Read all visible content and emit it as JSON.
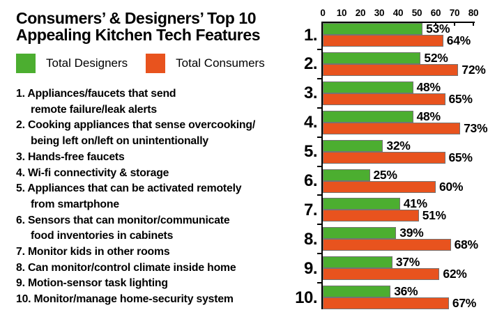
{
  "title": "Consumers’ & Designers’ Top 10\nAppealing Kitchen Tech Features",
  "legend": [
    {
      "label": "Total Designers",
      "color": "#4cae30"
    },
    {
      "label": "Total Consumers",
      "color": "#e8531e"
    }
  ],
  "features": [
    "1. Appliances/faucets that send\nremote failure/leak alerts",
    "2. Cooking appliances that sense overcooking/\nbeing left on/left on unintentionally",
    "3. Hands-free faucets",
    "4. Wi-fi connectivity & storage",
    "5. Appliances that can be activated remotely\nfrom smartphone",
    "6. Sensors that can monitor/communicate\nfood inventories in cabinets",
    "7. Monitor kids in other rooms",
    "8. Can monitor/control climate inside home",
    "9. Motion-sensor task lighting",
    "10. Monitor/manage home-security system"
  ],
  "chart_data": {
    "type": "bar",
    "orientation": "horizontal",
    "title": "Consumers’ & Designers’ Top 10 Appealing Kitchen Tech Features",
    "axis_position": "top",
    "xlim": [
      0,
      80
    ],
    "x_ticks": [
      0,
      10,
      20,
      30,
      40,
      50,
      60,
      70,
      80
    ],
    "value_suffix": "%",
    "row_labels": [
      "1.",
      "2.",
      "3.",
      "4.",
      "5.",
      "6.",
      "7.",
      "8.",
      "9.",
      "10."
    ],
    "categories": [
      "Appliances/faucets that send remote failure/leak alerts",
      "Cooking appliances that sense overcooking/being left on/left on unintentionally",
      "Hands-free faucets",
      "Wi-fi connectivity & storage",
      "Appliances that can be activated remotely from smartphone",
      "Sensors that can monitor/communicate food inventories in cabinets",
      "Monitor kids in other rooms",
      "Can monitor/control climate inside home",
      "Motion-sensor task lighting",
      "Monitor/manage home-security system"
    ],
    "series": [
      {
        "name": "Total Designers",
        "color": "#4cae30",
        "values": [
          53,
          52,
          48,
          48,
          32,
          25,
          41,
          39,
          37,
          36
        ]
      },
      {
        "name": "Total Consumers",
        "color": "#e8531e",
        "values": [
          64,
          72,
          65,
          73,
          65,
          60,
          51,
          68,
          62,
          67
        ]
      }
    ],
    "legend_position": "top-left",
    "grid": false
  }
}
